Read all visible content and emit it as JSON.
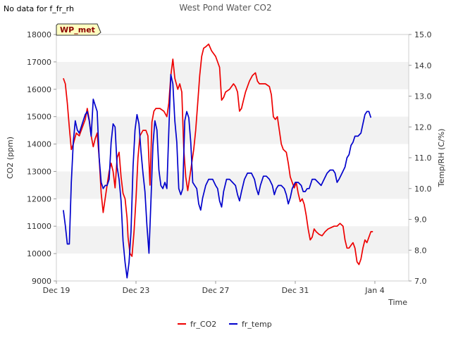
{
  "chart_data": {
    "type": "line",
    "title": "West Pond Water CO2",
    "note": "No data for f_fr_rh",
    "badge": "WP_met",
    "xlabel": "Time",
    "ylabel_left": "CO2 (ppm)",
    "ylabel_right": "Temp/RH (C/%)",
    "ylim_left": [
      9000,
      18000
    ],
    "ylim_right": [
      7.0,
      15.0
    ],
    "xlim": [
      0,
      17.7
    ],
    "x_unit": "days since Dec 19",
    "x_ticks": [
      {
        "pos": 0,
        "label": "Dec 19"
      },
      {
        "pos": 4,
        "label": "Dec 23"
      },
      {
        "pos": 8,
        "label": "Dec 27"
      },
      {
        "pos": 12,
        "label": "Dec 31"
      },
      {
        "pos": 16,
        "label": "Jan 4"
      }
    ],
    "y_ticks_left": [
      9000,
      10000,
      11000,
      12000,
      13000,
      14000,
      15000,
      16000,
      17000,
      18000
    ],
    "y_ticks_right": [
      7.0,
      8.0,
      9.0,
      10.0,
      11.0,
      12.0,
      13.0,
      14.0,
      15.0
    ],
    "grid_bands": true,
    "legend_position": "bottom-center",
    "series": [
      {
        "name": "fr_CO2",
        "axis": "left",
        "color": "#ee0000",
        "points": [
          [
            0.35,
            16400
          ],
          [
            0.45,
            16200
          ],
          [
            0.55,
            15500
          ],
          [
            0.65,
            14600
          ],
          [
            0.75,
            13800
          ],
          [
            0.85,
            14000
          ],
          [
            1.0,
            14400
          ],
          [
            1.15,
            14300
          ],
          [
            1.3,
            14600
          ],
          [
            1.45,
            14900
          ],
          [
            1.55,
            15300
          ],
          [
            1.65,
            14900
          ],
          [
            1.75,
            14300
          ],
          [
            1.85,
            13900
          ],
          [
            1.95,
            14200
          ],
          [
            2.05,
            14400
          ],
          [
            2.15,
            13500
          ],
          [
            2.25,
            12200
          ],
          [
            2.35,
            11500
          ],
          [
            2.45,
            12000
          ],
          [
            2.55,
            12500
          ],
          [
            2.65,
            13000
          ],
          [
            2.75,
            13300
          ],
          [
            2.85,
            13000
          ],
          [
            2.95,
            12400
          ],
          [
            3.05,
            13500
          ],
          [
            3.15,
            13700
          ],
          [
            3.25,
            12800
          ],
          [
            3.35,
            12200
          ],
          [
            3.45,
            12000
          ],
          [
            3.55,
            11300
          ],
          [
            3.6,
            10600
          ],
          [
            3.7,
            10000
          ],
          [
            3.8,
            9900
          ],
          [
            3.9,
            10800
          ],
          [
            4.0,
            12000
          ],
          [
            4.1,
            13500
          ],
          [
            4.2,
            14300
          ],
          [
            4.35,
            14500
          ],
          [
            4.5,
            14500
          ],
          [
            4.6,
            14300
          ],
          [
            4.7,
            12500
          ],
          [
            4.8,
            14800
          ],
          [
            4.9,
            15200
          ],
          [
            5.0,
            15300
          ],
          [
            5.2,
            15300
          ],
          [
            5.4,
            15200
          ],
          [
            5.55,
            15000
          ],
          [
            5.65,
            15500
          ],
          [
            5.75,
            16500
          ],
          [
            5.85,
            17100
          ],
          [
            5.95,
            16400
          ],
          [
            6.1,
            16000
          ],
          [
            6.2,
            16200
          ],
          [
            6.3,
            15900
          ],
          [
            6.4,
            13800
          ],
          [
            6.5,
            12800
          ],
          [
            6.6,
            12300
          ],
          [
            6.7,
            12800
          ],
          [
            6.8,
            13300
          ],
          [
            6.9,
            13800
          ],
          [
            7.0,
            14500
          ],
          [
            7.1,
            15500
          ],
          [
            7.2,
            16500
          ],
          [
            7.3,
            17200
          ],
          [
            7.4,
            17500
          ],
          [
            7.5,
            17550
          ],
          [
            7.65,
            17650
          ],
          [
            7.8,
            17400
          ],
          [
            7.9,
            17300
          ],
          [
            8.0,
            17200
          ],
          [
            8.1,
            17000
          ],
          [
            8.2,
            16800
          ],
          [
            8.3,
            15600
          ],
          [
            8.4,
            15700
          ],
          [
            8.5,
            15900
          ],
          [
            8.7,
            16000
          ],
          [
            8.9,
            16200
          ],
          [
            9.0,
            16100
          ],
          [
            9.1,
            15900
          ],
          [
            9.2,
            15200
          ],
          [
            9.3,
            15300
          ],
          [
            9.4,
            15600
          ],
          [
            9.5,
            15900
          ],
          [
            9.6,
            16100
          ],
          [
            9.7,
            16300
          ],
          [
            9.85,
            16500
          ],
          [
            10.0,
            16600
          ],
          [
            10.1,
            16300
          ],
          [
            10.2,
            16200
          ],
          [
            10.35,
            16200
          ],
          [
            10.5,
            16200
          ],
          [
            10.7,
            16100
          ],
          [
            10.8,
            15800
          ],
          [
            10.9,
            15000
          ],
          [
            11.0,
            14900
          ],
          [
            11.1,
            15000
          ],
          [
            11.2,
            14500
          ],
          [
            11.3,
            14000
          ],
          [
            11.4,
            13800
          ],
          [
            11.55,
            13700
          ],
          [
            11.65,
            13300
          ],
          [
            11.75,
            12800
          ],
          [
            11.85,
            12600
          ],
          [
            11.95,
            12400
          ],
          [
            12.05,
            12600
          ],
          [
            12.15,
            12200
          ],
          [
            12.25,
            11900
          ],
          [
            12.35,
            12000
          ],
          [
            12.45,
            11800
          ],
          [
            12.55,
            11400
          ],
          [
            12.65,
            10900
          ],
          [
            12.75,
            10500
          ],
          [
            12.85,
            10600
          ],
          [
            12.95,
            10900
          ],
          [
            13.05,
            10800
          ],
          [
            13.2,
            10700
          ],
          [
            13.35,
            10650
          ],
          [
            13.5,
            10800
          ],
          [
            13.65,
            10900
          ],
          [
            13.8,
            10950
          ],
          [
            13.95,
            11000
          ],
          [
            14.1,
            11000
          ],
          [
            14.25,
            11100
          ],
          [
            14.4,
            11000
          ],
          [
            14.5,
            10500
          ],
          [
            14.6,
            10200
          ],
          [
            14.7,
            10200
          ],
          [
            14.8,
            10300
          ],
          [
            14.9,
            10400
          ],
          [
            15.0,
            10200
          ],
          [
            15.1,
            9700
          ],
          [
            15.2,
            9600
          ],
          [
            15.3,
            9800
          ],
          [
            15.4,
            10200
          ],
          [
            15.5,
            10500
          ],
          [
            15.6,
            10400
          ],
          [
            15.7,
            10600
          ],
          [
            15.8,
            10800
          ],
          [
            15.9,
            10800
          ]
        ]
      },
      {
        "name": "fr_temp",
        "axis": "right",
        "color": "#0000cc",
        "points": [
          [
            0.35,
            9.3
          ],
          [
            0.45,
            8.8
          ],
          [
            0.55,
            8.2
          ],
          [
            0.65,
            8.2
          ],
          [
            0.75,
            10.2
          ],
          [
            0.85,
            11.5
          ],
          [
            0.95,
            12.2
          ],
          [
            1.05,
            11.9
          ],
          [
            1.15,
            11.8
          ],
          [
            1.25,
            12.0
          ],
          [
            1.35,
            12.2
          ],
          [
            1.45,
            12.4
          ],
          [
            1.55,
            12.5
          ],
          [
            1.65,
            12.2
          ],
          [
            1.75,
            11.7
          ],
          [
            1.85,
            12.9
          ],
          [
            1.95,
            12.7
          ],
          [
            2.05,
            12.5
          ],
          [
            2.15,
            11.0
          ],
          [
            2.25,
            10.2
          ],
          [
            2.35,
            10.0
          ],
          [
            2.45,
            10.1
          ],
          [
            2.55,
            10.1
          ],
          [
            2.65,
            10.3
          ],
          [
            2.75,
            11.5
          ],
          [
            2.85,
            12.1
          ],
          [
            2.95,
            12.0
          ],
          [
            3.05,
            10.7
          ],
          [
            3.15,
            10.3
          ],
          [
            3.25,
            9.6
          ],
          [
            3.35,
            8.3
          ],
          [
            3.45,
            7.6
          ],
          [
            3.55,
            7.1
          ],
          [
            3.65,
            7.6
          ],
          [
            3.75,
            8.6
          ],
          [
            3.85,
            10.7
          ],
          [
            3.95,
            11.9
          ],
          [
            4.05,
            12.4
          ],
          [
            4.15,
            12.1
          ],
          [
            4.25,
            11.2
          ],
          [
            4.35,
            10.5
          ],
          [
            4.45,
            9.9
          ],
          [
            4.55,
            8.8
          ],
          [
            4.65,
            7.9
          ],
          [
            4.75,
            9.6
          ],
          [
            4.85,
            11.4
          ],
          [
            4.95,
            12.2
          ],
          [
            5.05,
            11.9
          ],
          [
            5.15,
            10.6
          ],
          [
            5.25,
            10.1
          ],
          [
            5.35,
            10.0
          ],
          [
            5.45,
            10.2
          ],
          [
            5.55,
            10.0
          ],
          [
            5.65,
            11.9
          ],
          [
            5.75,
            13.7
          ],
          [
            5.85,
            13.4
          ],
          [
            5.95,
            12.2
          ],
          [
            6.05,
            11.5
          ],
          [
            6.15,
            10.0
          ],
          [
            6.25,
            9.8
          ],
          [
            6.35,
            10.0
          ],
          [
            6.45,
            12.2
          ],
          [
            6.55,
            12.5
          ],
          [
            6.65,
            12.3
          ],
          [
            6.75,
            11.5
          ],
          [
            6.85,
            10.2
          ],
          [
            6.95,
            10.1
          ],
          [
            7.05,
            10.0
          ],
          [
            7.15,
            9.5
          ],
          [
            7.25,
            9.3
          ],
          [
            7.35,
            9.7
          ],
          [
            7.5,
            10.1
          ],
          [
            7.65,
            10.3
          ],
          [
            7.85,
            10.3
          ],
          [
            8.0,
            10.1
          ],
          [
            8.1,
            10.0
          ],
          [
            8.2,
            9.6
          ],
          [
            8.3,
            9.4
          ],
          [
            8.4,
            9.9
          ],
          [
            8.55,
            10.3
          ],
          [
            8.7,
            10.3
          ],
          [
            8.85,
            10.2
          ],
          [
            9.0,
            10.1
          ],
          [
            9.1,
            9.8
          ],
          [
            9.2,
            9.6
          ],
          [
            9.3,
            9.9
          ],
          [
            9.45,
            10.3
          ],
          [
            9.6,
            10.5
          ],
          [
            9.8,
            10.5
          ],
          [
            9.95,
            10.3
          ],
          [
            10.05,
            10.0
          ],
          [
            10.15,
            9.8
          ],
          [
            10.25,
            10.1
          ],
          [
            10.4,
            10.4
          ],
          [
            10.55,
            10.4
          ],
          [
            10.7,
            10.3
          ],
          [
            10.85,
            10.1
          ],
          [
            10.95,
            9.8
          ],
          [
            11.05,
            10.0
          ],
          [
            11.15,
            10.1
          ],
          [
            11.3,
            10.1
          ],
          [
            11.45,
            10.0
          ],
          [
            11.55,
            9.8
          ],
          [
            11.65,
            9.5
          ],
          [
            11.75,
            9.7
          ],
          [
            11.85,
            10.0
          ],
          [
            12.0,
            10.2
          ],
          [
            12.15,
            10.2
          ],
          [
            12.3,
            10.1
          ],
          [
            12.4,
            9.9
          ],
          [
            12.5,
            9.9
          ],
          [
            12.6,
            10.0
          ],
          [
            12.7,
            10.0
          ],
          [
            12.85,
            10.3
          ],
          [
            13.0,
            10.3
          ],
          [
            13.15,
            10.2
          ],
          [
            13.3,
            10.1
          ],
          [
            13.45,
            10.3
          ],
          [
            13.6,
            10.5
          ],
          [
            13.75,
            10.6
          ],
          [
            13.9,
            10.6
          ],
          [
            14.0,
            10.5
          ],
          [
            14.1,
            10.2
          ],
          [
            14.2,
            10.3
          ],
          [
            14.35,
            10.5
          ],
          [
            14.5,
            10.7
          ],
          [
            14.6,
            11.0
          ],
          [
            14.7,
            11.1
          ],
          [
            14.8,
            11.4
          ],
          [
            14.9,
            11.5
          ],
          [
            15.0,
            11.7
          ],
          [
            15.15,
            11.7
          ],
          [
            15.3,
            11.8
          ],
          [
            15.4,
            12.1
          ],
          [
            15.5,
            12.4
          ],
          [
            15.6,
            12.5
          ],
          [
            15.7,
            12.5
          ],
          [
            15.8,
            12.3
          ]
        ]
      }
    ]
  }
}
